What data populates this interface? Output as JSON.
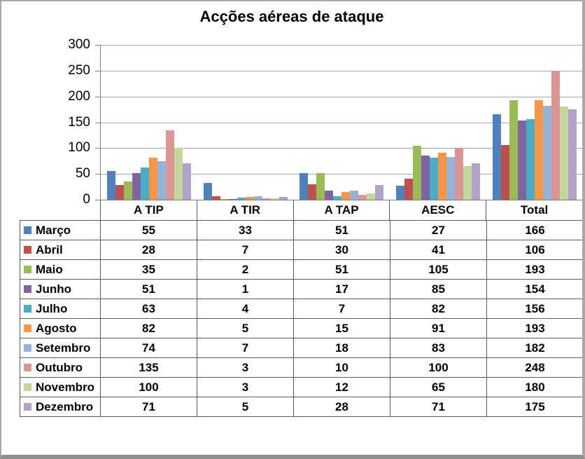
{
  "chart_data": {
    "type": "bar",
    "title": "Acções aéreas de ataque",
    "categories": [
      "A TIP",
      "A TIR",
      "A TAP",
      "AESC",
      "Total"
    ],
    "series": [
      {
        "name": "Março",
        "color": "#4F81BD",
        "values": [
          55,
          33,
          51,
          27,
          166
        ]
      },
      {
        "name": "Abril",
        "color": "#C0504D",
        "values": [
          28,
          7,
          30,
          41,
          106
        ]
      },
      {
        "name": "Maio",
        "color": "#9BBB59",
        "values": [
          35,
          2,
          51,
          105,
          193
        ]
      },
      {
        "name": "Junho",
        "color": "#8064A2",
        "values": [
          51,
          1,
          17,
          85,
          154
        ]
      },
      {
        "name": "Julho",
        "color": "#4BACC6",
        "values": [
          63,
          4,
          7,
          82,
          156
        ]
      },
      {
        "name": "Agosto",
        "color": "#F79646",
        "values": [
          82,
          5,
          15,
          91,
          193
        ]
      },
      {
        "name": "Setembro",
        "color": "#95B3D7",
        "values": [
          74,
          7,
          18,
          83,
          182
        ]
      },
      {
        "name": "Outubro",
        "color": "#D99694",
        "values": [
          135,
          3,
          10,
          100,
          248
        ]
      },
      {
        "name": "Novembro",
        "color": "#C3D69B",
        "values": [
          100,
          3,
          12,
          65,
          180
        ]
      },
      {
        "name": "Dezembro",
        "color": "#B3A2C7",
        "values": [
          71,
          5,
          28,
          71,
          175
        ]
      }
    ],
    "y_axis": {
      "min": 0,
      "max": 300,
      "step": 50,
      "tick_labels": [
        "300",
        "250",
        "200",
        "150",
        "100",
        "50",
        "0"
      ]
    },
    "grid": true,
    "legend_position": "table-left",
    "data_table_shown": true
  }
}
